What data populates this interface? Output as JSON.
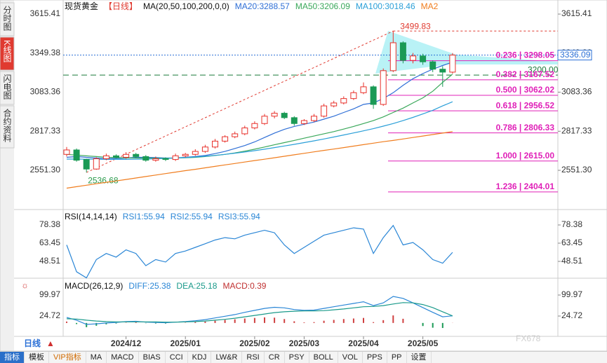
{
  "chart_data": {
    "type": "candlestick",
    "title": "现货黄金",
    "period": "【日线】",
    "ma_legend": "MA(20,50,100,200,0,0)",
    "ma_values": [
      "MA20:3288.57",
      "MA50:3206.09",
      "MA100:3018.46",
      "MA2"
    ],
    "side_tabs": [
      "分时图",
      "K线图",
      "闪电图",
      "合约资料"
    ],
    "active_tab": 1,
    "period_switch": "日线",
    "watermark": "FX678",
    "up_color": "#e8302a",
    "down_color": "#1a9a55",
    "ylim": [
      2289,
      3673
    ],
    "yticks": [
      3615.41,
      3349.38,
      3083.36,
      2817.33,
      {
        "value": 2551.3,
        "label": "2551.30"
      }
    ],
    "categories": [
      null,
      null,
      null,
      null,
      null,
      null,
      "2024/12",
      null,
      null,
      null,
      null,
      null,
      "2025/01",
      null,
      null,
      null,
      null,
      null,
      null,
      "2025/02",
      null,
      null,
      null,
      null,
      "2025/03",
      null,
      null,
      null,
      null,
      null,
      "2025/04",
      null,
      null,
      null,
      null,
      null,
      "2025/05",
      null,
      null,
      null
    ],
    "open": [
      2660,
      2690,
      2625,
      2560,
      2630,
      2650,
      2640,
      2660,
      2645,
      2620,
      2630,
      2625,
      2650,
      2660,
      2680,
      2710,
      2750,
      2780,
      2800,
      2840,
      2870,
      2920,
      2940,
      2910,
      2870,
      2890,
      2920,
      2990,
      3010,
      3040,
      3080,
      3120,
      3000,
      3230,
      3420,
      3300,
      3330,
      3290,
      3240,
      3220
    ],
    "high": [
      2710,
      2700,
      2630,
      2640,
      2665,
      2660,
      2675,
      2670,
      2655,
      2645,
      2640,
      2665,
      2670,
      2695,
      2725,
      2765,
      2790,
      2815,
      2855,
      2885,
      2935,
      2955,
      2950,
      2920,
      2900,
      2935,
      3005,
      3025,
      3055,
      3095,
      3150,
      3130,
      3245,
      3499.83,
      3430,
      3350,
      3345,
      3300,
      3260,
      3350
    ],
    "low": [
      2645,
      2610,
      2536.68,
      2555,
      2620,
      2630,
      2630,
      2635,
      2610,
      2610,
      2615,
      2615,
      2640,
      2650,
      2670,
      2700,
      2740,
      2770,
      2790,
      2830,
      2860,
      2905,
      2900,
      2855,
      2860,
      2880,
      2910,
      2980,
      3000,
      3030,
      3070,
      2970,
      2990,
      3220,
      3280,
      3280,
      3270,
      3220,
      3120,
      3210
    ],
    "close": [
      2690,
      2620,
      2560,
      2630,
      2650,
      2640,
      2660,
      2645,
      2620,
      2630,
      2625,
      2650,
      2660,
      2680,
      2710,
      2750,
      2780,
      2800,
      2840,
      2870,
      2920,
      2940,
      2910,
      2870,
      2890,
      2920,
      2990,
      3010,
      3040,
      3080,
      3120,
      3000,
      3230,
      3420,
      3300,
      3330,
      3290,
      3240,
      3220,
      3336.09
    ],
    "series": [
      {
        "name": "MA20",
        "color": "#2f6fd6",
        "values": [
          2640,
          2645,
          2640,
          2635,
          2630,
          2632,
          2635,
          2640,
          2640,
          2638,
          2635,
          2636,
          2640,
          2645,
          2652,
          2665,
          2680,
          2700,
          2720,
          2745,
          2775,
          2805,
          2830,
          2850,
          2865,
          2880,
          2900,
          2920,
          2945,
          2970,
          3000,
          3010,
          3040,
          3080,
          3130,
          3175,
          3210,
          3240,
          3265,
          3288.57
        ]
      },
      {
        "name": "MA50",
        "color": "#3aa85a",
        "values": [
          2660,
          2655,
          2650,
          2645,
          2640,
          2638,
          2636,
          2635,
          2634,
          2634,
          2634,
          2635,
          2637,
          2640,
          2645,
          2652,
          2660,
          2670,
          2682,
          2695,
          2710,
          2725,
          2740,
          2755,
          2770,
          2785,
          2800,
          2815,
          2832,
          2850,
          2870,
          2890,
          2915,
          2945,
          2975,
          3010,
          3045,
          3090,
          3150,
          3206.09
        ]
      },
      {
        "name": "MA100",
        "color": "#2a9fd8",
        "values": [
          2628,
          2628,
          2627,
          2627,
          2626,
          2626,
          2626,
          2627,
          2628,
          2630,
          2632,
          2635,
          2638,
          2642,
          2647,
          2653,
          2660,
          2668,
          2676,
          2685,
          2695,
          2706,
          2717,
          2728,
          2740,
          2752,
          2765,
          2778,
          2792,
          2806,
          2820,
          2835,
          2852,
          2870,
          2890,
          2912,
          2935,
          2960,
          2990,
          3018.46
        ]
      },
      {
        "name": "MA2",
        "color": "#f07d1e",
        "values": [
          2430,
          2440,
          2450,
          2460,
          2470,
          2479,
          2489,
          2499,
          2509,
          2519,
          2529,
          2539,
          2549,
          2558,
          2568,
          2578,
          2588,
          2598,
          2608,
          2618,
          2627,
          2637,
          2647,
          2657,
          2667,
          2677,
          2687,
          2696,
          2706,
          2716,
          2726,
          2736,
          2746,
          2755,
          2765,
          2775,
          2785,
          2795,
          2805,
          2815
        ]
      }
    ],
    "high_label": "3499.83",
    "low_label": "2536.68",
    "current_price": 3336.09,
    "current_price_label": "3336.09",
    "support": 3200,
    "support_label": "3200.00",
    "fib_levels": [
      {
        "value": 3298.05,
        "label": "0.236 | 3298.05"
      },
      {
        "value": 3167.52,
        "label": "0.382 | 3167.52"
      },
      {
        "value": 3062.02,
        "label": "0.500 | 3062.02"
      },
      {
        "value": 2956.52,
        "label": "0.618 | 2956.52"
      },
      {
        "value": 2806.33,
        "label": "0.786 | 2806.33"
      },
      {
        "value": 2615,
        "label": "1.000 | 2615.00"
      },
      {
        "value": 2404.01,
        "label": "1.236 | 2404.01"
      }
    ],
    "fib_color": "#e020b8",
    "rsi": {
      "legend": [
        "RSI(14,14,14)",
        "RSI1:55.94",
        "RSI2:55.94",
        "RSI3:55.94"
      ],
      "color": "#2a86d6",
      "ylim": [
        35.87,
        90.44
      ],
      "yticks": [
        78.38,
        63.45,
        48.51
      ],
      "values": [
        62,
        40,
        35,
        50,
        55,
        52,
        58,
        55,
        45,
        50,
        48,
        55,
        57,
        60,
        63,
        66,
        68,
        67,
        70,
        72,
        74,
        72,
        62,
        55,
        60,
        65,
        70,
        72,
        74,
        76,
        75,
        55,
        68,
        78,
        62,
        64,
        58,
        50,
        47,
        55.94
      ]
    },
    "macd": {
      "legend": [
        "MACD(26,12,9)",
        "DIFF:25.38",
        "DEA:25.18",
        "MACD:0.39"
      ],
      "ylim": [
        -43,
        157.7
      ],
      "yticks": [
        99.97,
        24.72
      ],
      "diff": {
        "color": "#2a86d6",
        "values": [
          20,
          10,
          -5,
          -3,
          0,
          2,
          5,
          6,
          3,
          2,
          1,
          3,
          5,
          8,
          12,
          18,
          24,
          30,
          38,
          45,
          52,
          56,
          54,
          48,
          45,
          46,
          52,
          58,
          64,
          70,
          76,
          62,
          72,
          95,
          88,
          72,
          55,
          38,
          22,
          25.38
        ]
      },
      "dea": {
        "color": "#1a9a8a",
        "values": [
          15,
          14,
          10,
          7,
          5,
          4,
          4,
          4,
          4,
          4,
          3,
          3,
          4,
          5,
          7,
          10,
          13,
          17,
          22,
          27,
          32,
          37,
          40,
          42,
          43,
          43,
          44,
          47,
          50,
          54,
          58,
          59,
          62,
          68,
          73,
          72,
          66,
          55,
          40,
          25.18
        ]
      },
      "hist": [
        5,
        -4,
        -15,
        -10,
        -5,
        -2,
        1,
        2,
        -1,
        -2,
        -2,
        0,
        1,
        3,
        5,
        8,
        11,
        13,
        16,
        18,
        20,
        19,
        14,
        6,
        2,
        3,
        8,
        11,
        14,
        16,
        18,
        3,
        10,
        27,
        15,
        0,
        -11,
        -17,
        -18,
        0.39
      ]
    },
    "toolbar": [
      "指标",
      "模板",
      "VIP指标",
      "MA",
      "MACD",
      "BIAS",
      "CCI",
      "KDJ",
      "LW&R",
      "RSI",
      "CR",
      "PSY",
      "BOLL",
      "VOL",
      "PPS",
      "PP",
      "设置"
    ],
    "toolbar_active": 0,
    "toolbar_vip": 2
  }
}
